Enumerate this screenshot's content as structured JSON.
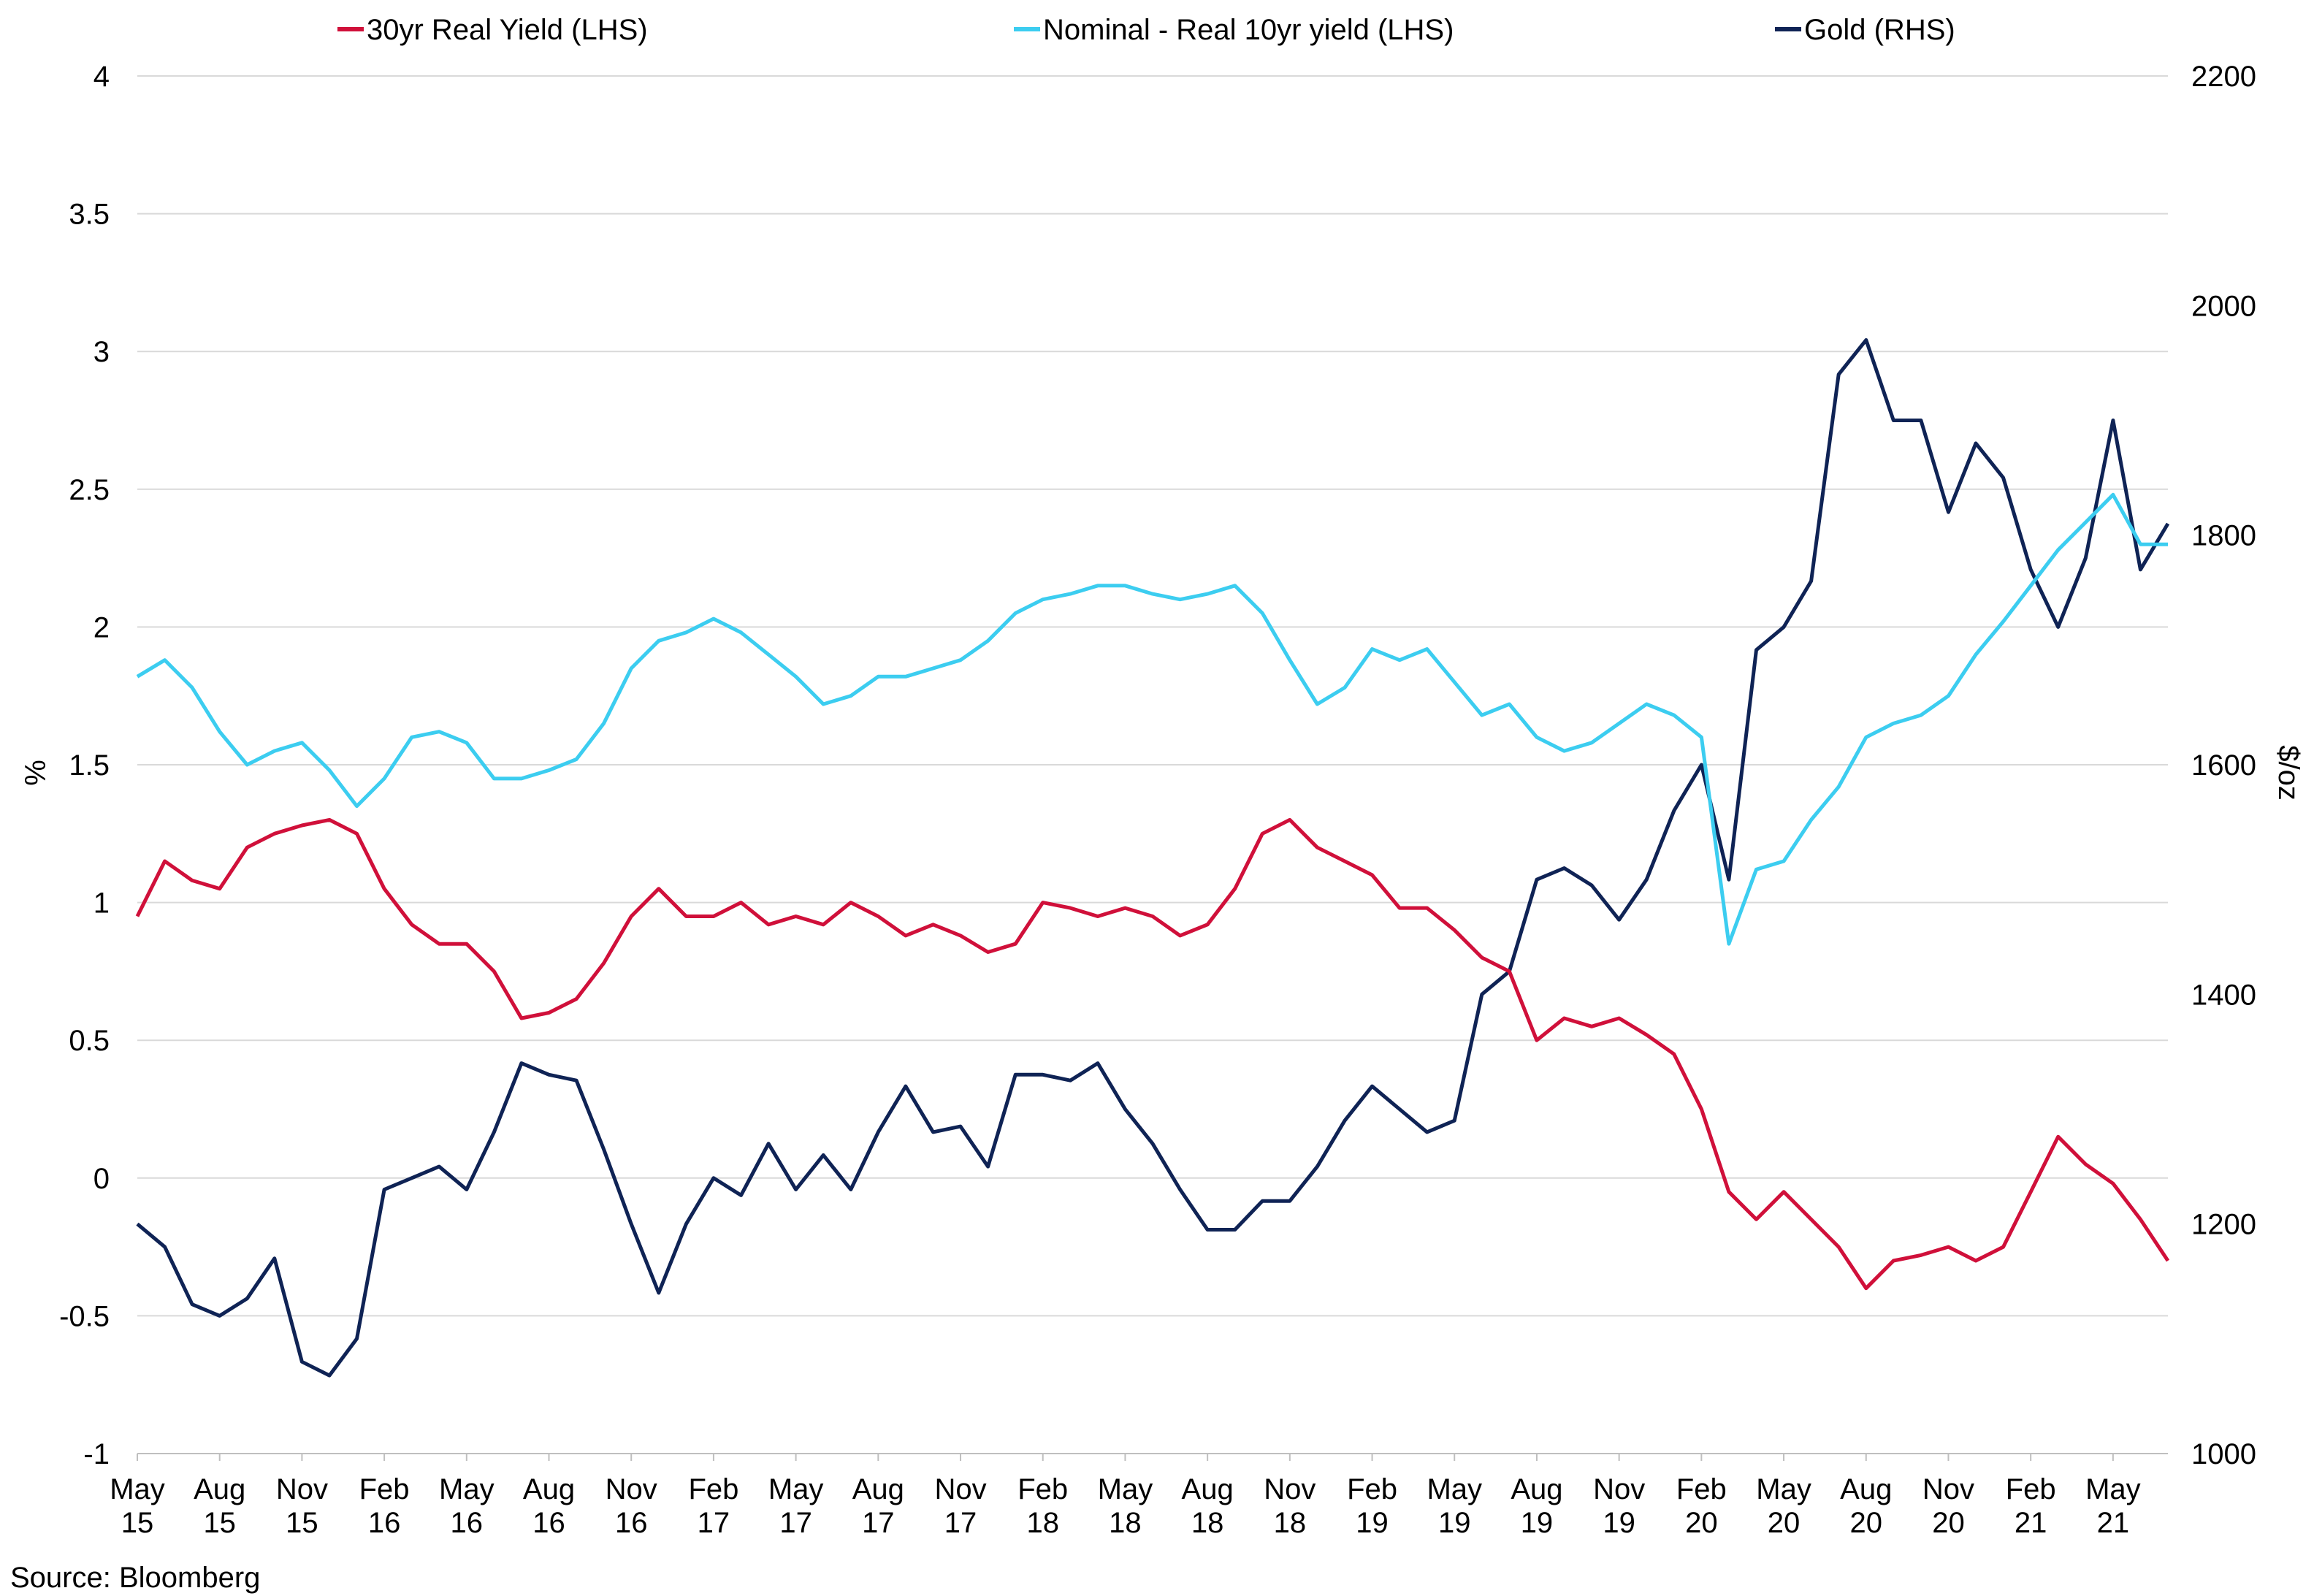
{
  "chart_data": {
    "type": "line",
    "title": "",
    "source": "Source: Bloomberg",
    "y_left": {
      "label": "%",
      "ylim": [
        -1,
        4
      ],
      "ticks": [
        "4",
        "3.5",
        "3",
        "2.5",
        "2",
        "1.5",
        "1",
        "0.5",
        "0",
        "-0.5",
        "-1"
      ]
    },
    "y_right": {
      "label": "$/oz",
      "ylim": [
        1000,
        2200
      ],
      "ticks": [
        "2200",
        "2000",
        "1800",
        "1600",
        "1400",
        "1200",
        "1000"
      ]
    },
    "x_axis": {
      "range": [
        "2015-05",
        "2021-07"
      ],
      "ticks": [
        {
          "date": "2015-05",
          "line1": "May",
          "line2": "15"
        },
        {
          "date": "2015-08",
          "line1": "Aug",
          "line2": "15"
        },
        {
          "date": "2015-11",
          "line1": "Nov",
          "line2": "15"
        },
        {
          "date": "2016-02",
          "line1": "Feb",
          "line2": "16"
        },
        {
          "date": "2016-05",
          "line1": "May",
          "line2": "16"
        },
        {
          "date": "2016-08",
          "line1": "Aug",
          "line2": "16"
        },
        {
          "date": "2016-11",
          "line1": "Nov",
          "line2": "16"
        },
        {
          "date": "2017-02",
          "line1": "Feb",
          "line2": "17"
        },
        {
          "date": "2017-05",
          "line1": "May",
          "line2": "17"
        },
        {
          "date": "2017-08",
          "line1": "Aug",
          "line2": "17"
        },
        {
          "date": "2017-11",
          "line1": "Nov",
          "line2": "17"
        },
        {
          "date": "2018-02",
          "line1": "Feb",
          "line2": "18"
        },
        {
          "date": "2018-05",
          "line1": "May",
          "line2": "18"
        },
        {
          "date": "2018-08",
          "line1": "Aug",
          "line2": "18"
        },
        {
          "date": "2018-11",
          "line1": "Nov",
          "line2": "18"
        },
        {
          "date": "2019-02",
          "line1": "Feb",
          "line2": "19"
        },
        {
          "date": "2019-05",
          "line1": "May",
          "line2": "19"
        },
        {
          "date": "2019-08",
          "line1": "Aug",
          "line2": "19"
        },
        {
          "date": "2019-11",
          "line1": "Nov",
          "line2": "19"
        },
        {
          "date": "2020-02",
          "line1": "Feb",
          "line2": "20"
        },
        {
          "date": "2020-05",
          "line1": "May",
          "line2": "20"
        },
        {
          "date": "2020-08",
          "line1": "Aug",
          "line2": "20"
        },
        {
          "date": "2020-11",
          "line1": "Nov",
          "line2": "20"
        },
        {
          "date": "2021-02",
          "line1": "Feb",
          "line2": "21"
        },
        {
          "date": "2021-05",
          "line1": "May",
          "line2": "21"
        }
      ]
    },
    "legend_position": "top",
    "grid": "horizontal",
    "series": [
      {
        "name": "30yr Real Yield (LHS)",
        "axis": "left",
        "color": "#d0103a",
        "points": [
          [
            "2015-05",
            0.95
          ],
          [
            "2015-06",
            1.15
          ],
          [
            "2015-07",
            1.08
          ],
          [
            "2015-08",
            1.05
          ],
          [
            "2015-09",
            1.2
          ],
          [
            "2015-10",
            1.25
          ],
          [
            "2015-11",
            1.28
          ],
          [
            "2015-12",
            1.3
          ],
          [
            "2016-01",
            1.25
          ],
          [
            "2016-02",
            1.05
          ],
          [
            "2016-03",
            0.92
          ],
          [
            "2016-04",
            0.85
          ],
          [
            "2016-05",
            0.85
          ],
          [
            "2016-06",
            0.75
          ],
          [
            "2016-07",
            0.58
          ],
          [
            "2016-08",
            0.6
          ],
          [
            "2016-09",
            0.65
          ],
          [
            "2016-10",
            0.78
          ],
          [
            "2016-11",
            0.95
          ],
          [
            "2016-12",
            1.05
          ],
          [
            "2017-01",
            0.95
          ],
          [
            "2017-02",
            0.95
          ],
          [
            "2017-03",
            1.0
          ],
          [
            "2017-04",
            0.92
          ],
          [
            "2017-05",
            0.95
          ],
          [
            "2017-06",
            0.92
          ],
          [
            "2017-07",
            1.0
          ],
          [
            "2017-08",
            0.95
          ],
          [
            "2017-09",
            0.88
          ],
          [
            "2017-10",
            0.92
          ],
          [
            "2017-11",
            0.88
          ],
          [
            "2017-12",
            0.82
          ],
          [
            "2018-01",
            0.85
          ],
          [
            "2018-02",
            1.0
          ],
          [
            "2018-03",
            0.98
          ],
          [
            "2018-04",
            0.95
          ],
          [
            "2018-05",
            0.98
          ],
          [
            "2018-06",
            0.95
          ],
          [
            "2018-07",
            0.88
          ],
          [
            "2018-08",
            0.92
          ],
          [
            "2018-09",
            1.05
          ],
          [
            "2018-10",
            1.25
          ],
          [
            "2018-11",
            1.3
          ],
          [
            "2018-12",
            1.2
          ],
          [
            "2019-01",
            1.15
          ],
          [
            "2019-02",
            1.1
          ],
          [
            "2019-03",
            0.98
          ],
          [
            "2019-04",
            0.98
          ],
          [
            "2019-05",
            0.9
          ],
          [
            "2019-06",
            0.8
          ],
          [
            "2019-07",
            0.75
          ],
          [
            "2019-08",
            0.5
          ],
          [
            "2019-09",
            0.58
          ],
          [
            "2019-10",
            0.55
          ],
          [
            "2019-11",
            0.58
          ],
          [
            "2019-12",
            0.52
          ],
          [
            "2020-01",
            0.45
          ],
          [
            "2020-02",
            0.25
          ],
          [
            "2020-03",
            -0.05
          ],
          [
            "2020-04",
            -0.15
          ],
          [
            "2020-05",
            -0.05
          ],
          [
            "2020-06",
            -0.15
          ],
          [
            "2020-07",
            -0.25
          ],
          [
            "2020-08",
            -0.4
          ],
          [
            "2020-09",
            -0.3
          ],
          [
            "2020-10",
            -0.28
          ],
          [
            "2020-11",
            -0.25
          ],
          [
            "2020-12",
            -0.3
          ],
          [
            "2021-01",
            -0.25
          ],
          [
            "2021-02",
            -0.05
          ],
          [
            "2021-03",
            0.15
          ],
          [
            "2021-04",
            0.05
          ],
          [
            "2021-05",
            -0.02
          ],
          [
            "2021-06",
            -0.15
          ],
          [
            "2021-07",
            -0.3
          ]
        ]
      },
      {
        "name": "Nominal - Real 10yr yield (LHS)",
        "axis": "left",
        "color": "#3ccdf0",
        "points": [
          [
            "2015-05",
            1.82
          ],
          [
            "2015-06",
            1.88
          ],
          [
            "2015-07",
            1.78
          ],
          [
            "2015-08",
            1.62
          ],
          [
            "2015-09",
            1.5
          ],
          [
            "2015-10",
            1.55
          ],
          [
            "2015-11",
            1.58
          ],
          [
            "2015-12",
            1.48
          ],
          [
            "2016-01",
            1.35
          ],
          [
            "2016-02",
            1.45
          ],
          [
            "2016-03",
            1.6
          ],
          [
            "2016-04",
            1.62
          ],
          [
            "2016-05",
            1.58
          ],
          [
            "2016-06",
            1.45
          ],
          [
            "2016-07",
            1.45
          ],
          [
            "2016-08",
            1.48
          ],
          [
            "2016-09",
            1.52
          ],
          [
            "2016-10",
            1.65
          ],
          [
            "2016-11",
            1.85
          ],
          [
            "2016-12",
            1.95
          ],
          [
            "2017-01",
            1.98
          ],
          [
            "2017-02",
            2.03
          ],
          [
            "2017-03",
            1.98
          ],
          [
            "2017-04",
            1.9
          ],
          [
            "2017-05",
            1.82
          ],
          [
            "2017-06",
            1.72
          ],
          [
            "2017-07",
            1.75
          ],
          [
            "2017-08",
            1.82
          ],
          [
            "2017-09",
            1.82
          ],
          [
            "2017-10",
            1.85
          ],
          [
            "2017-11",
            1.88
          ],
          [
            "2017-12",
            1.95
          ],
          [
            "2018-01",
            2.05
          ],
          [
            "2018-02",
            2.1
          ],
          [
            "2018-03",
            2.12
          ],
          [
            "2018-04",
            2.15
          ],
          [
            "2018-05",
            2.15
          ],
          [
            "2018-06",
            2.12
          ],
          [
            "2018-07",
            2.1
          ],
          [
            "2018-08",
            2.12
          ],
          [
            "2018-09",
            2.15
          ],
          [
            "2018-10",
            2.05
          ],
          [
            "2018-11",
            1.88
          ],
          [
            "2018-12",
            1.72
          ],
          [
            "2019-01",
            1.78
          ],
          [
            "2019-02",
            1.92
          ],
          [
            "2019-03",
            1.88
          ],
          [
            "2019-04",
            1.92
          ],
          [
            "2019-05",
            1.8
          ],
          [
            "2019-06",
            1.68
          ],
          [
            "2019-07",
            1.72
          ],
          [
            "2019-08",
            1.6
          ],
          [
            "2019-09",
            1.55
          ],
          [
            "2019-10",
            1.58
          ],
          [
            "2019-11",
            1.65
          ],
          [
            "2019-12",
            1.72
          ],
          [
            "2020-01",
            1.68
          ],
          [
            "2020-02",
            1.6
          ],
          [
            "2020-03",
            0.85
          ],
          [
            "2020-04",
            1.12
          ],
          [
            "2020-05",
            1.15
          ],
          [
            "2020-06",
            1.3
          ],
          [
            "2020-07",
            1.42
          ],
          [
            "2020-08",
            1.6
          ],
          [
            "2020-09",
            1.65
          ],
          [
            "2020-10",
            1.68
          ],
          [
            "2020-11",
            1.75
          ],
          [
            "2020-12",
            1.9
          ],
          [
            "2021-01",
            2.02
          ],
          [
            "2021-02",
            2.15
          ],
          [
            "2021-03",
            2.28
          ],
          [
            "2021-04",
            2.38
          ],
          [
            "2021-05",
            2.48
          ],
          [
            "2021-06",
            2.3
          ],
          [
            "2021-07",
            2.3
          ]
        ]
      },
      {
        "name": "Gold (RHS)",
        "axis": "right",
        "color": "#0f2355",
        "points": [
          [
            "2015-05",
            1200
          ],
          [
            "2015-06",
            1180
          ],
          [
            "2015-07",
            1130
          ],
          [
            "2015-08",
            1120
          ],
          [
            "2015-09",
            1135
          ],
          [
            "2015-10",
            1170
          ],
          [
            "2015-11",
            1080
          ],
          [
            "2015-12",
            1068
          ],
          [
            "2016-01",
            1100
          ],
          [
            "2016-02",
            1230
          ],
          [
            "2016-03",
            1240
          ],
          [
            "2016-04",
            1250
          ],
          [
            "2016-05",
            1230
          ],
          [
            "2016-06",
            1280
          ],
          [
            "2016-07",
            1340
          ],
          [
            "2016-08",
            1330
          ],
          [
            "2016-09",
            1325
          ],
          [
            "2016-10",
            1265
          ],
          [
            "2016-11",
            1200
          ],
          [
            "2016-12",
            1140
          ],
          [
            "2017-01",
            1200
          ],
          [
            "2017-02",
            1240
          ],
          [
            "2017-03",
            1225
          ],
          [
            "2017-04",
            1270
          ],
          [
            "2017-05",
            1230
          ],
          [
            "2017-06",
            1260
          ],
          [
            "2017-07",
            1230
          ],
          [
            "2017-08",
            1280
          ],
          [
            "2017-09",
            1320
          ],
          [
            "2017-10",
            1280
          ],
          [
            "2017-11",
            1285
          ],
          [
            "2017-12",
            1250
          ],
          [
            "2018-01",
            1330
          ],
          [
            "2018-02",
            1330
          ],
          [
            "2018-03",
            1325
          ],
          [
            "2018-04",
            1340
          ],
          [
            "2018-05",
            1300
          ],
          [
            "2018-06",
            1270
          ],
          [
            "2018-07",
            1230
          ],
          [
            "2018-08",
            1195
          ],
          [
            "2018-09",
            1195
          ],
          [
            "2018-10",
            1220
          ],
          [
            "2018-11",
            1220
          ],
          [
            "2018-12",
            1250
          ],
          [
            "2019-01",
            1290
          ],
          [
            "2019-02",
            1320
          ],
          [
            "2019-03",
            1300
          ],
          [
            "2019-04",
            1280
          ],
          [
            "2019-05",
            1290
          ],
          [
            "2019-06",
            1400
          ],
          [
            "2019-07",
            1420
          ],
          [
            "2019-08",
            1500
          ],
          [
            "2019-09",
            1510
          ],
          [
            "2019-10",
            1495
          ],
          [
            "2019-11",
            1465
          ],
          [
            "2019-12",
            1500
          ],
          [
            "2020-01",
            1560
          ],
          [
            "2020-02",
            1600
          ],
          [
            "2020-03",
            1500
          ],
          [
            "2020-04",
            1700
          ],
          [
            "2020-05",
            1720
          ],
          [
            "2020-06",
            1760
          ],
          [
            "2020-07",
            1940
          ],
          [
            "2020-08",
            1970
          ],
          [
            "2020-09",
            1900
          ],
          [
            "2020-10",
            1900
          ],
          [
            "2020-11",
            1820
          ],
          [
            "2020-12",
            1880
          ],
          [
            "2021-01",
            1850
          ],
          [
            "2021-02",
            1770
          ],
          [
            "2021-03",
            1720
          ],
          [
            "2021-04",
            1780
          ],
          [
            "2021-05",
            1900
          ],
          [
            "2021-06",
            1770
          ],
          [
            "2021-07",
            1810
          ]
        ]
      }
    ]
  }
}
